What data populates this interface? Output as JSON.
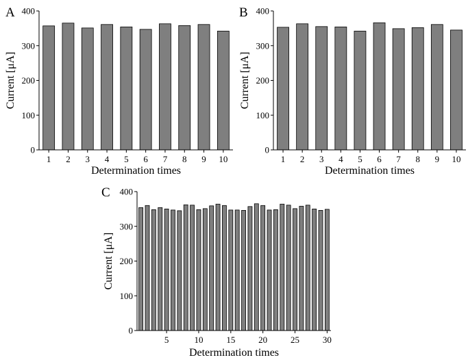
{
  "chart_data": [
    {
      "panel_label": "A",
      "type": "bar",
      "categories": [
        "1",
        "2",
        "3",
        "4",
        "5",
        "6",
        "7",
        "8",
        "9",
        "10"
      ],
      "values": [
        357,
        365,
        351,
        361,
        354,
        347,
        363,
        358,
        361,
        342
      ],
      "xlabel": "Determination times",
      "ylabel": "Current [μA]",
      "ylim": [
        0,
        400
      ],
      "yticks": [
        "0",
        "100",
        "200",
        "300",
        "400"
      ],
      "xticks": [
        "1",
        "2",
        "3",
        "4",
        "5",
        "6",
        "7",
        "8",
        "9",
        "10"
      ],
      "grid": false
    },
    {
      "panel_label": "B",
      "type": "bar",
      "categories": [
        "1",
        "2",
        "3",
        "4",
        "5",
        "6",
        "7",
        "8",
        "9",
        "10"
      ],
      "values": [
        353,
        363,
        355,
        354,
        342,
        366,
        349,
        352,
        361,
        345
      ],
      "xlabel": "Determination times",
      "ylabel": "Current [μA]",
      "ylim": [
        0,
        400
      ],
      "yticks": [
        "0",
        "100",
        "200",
        "300",
        "400"
      ],
      "xticks": [
        "1",
        "2",
        "3",
        "4",
        "5",
        "6",
        "7",
        "8",
        "9",
        "10"
      ],
      "grid": false
    },
    {
      "panel_label": "C",
      "type": "bar",
      "categories": [
        "1",
        "2",
        "3",
        "4",
        "5",
        "6",
        "7",
        "8",
        "9",
        "10",
        "11",
        "12",
        "13",
        "14",
        "15",
        "16",
        "17",
        "18",
        "19",
        "20",
        "21",
        "22",
        "23",
        "24",
        "25",
        "26",
        "27",
        "28",
        "29",
        "30"
      ],
      "values": [
        354,
        360,
        348,
        354,
        350,
        347,
        345,
        362,
        361,
        348,
        351,
        359,
        364,
        360,
        347,
        347,
        346,
        357,
        365,
        360,
        347,
        348,
        364,
        361,
        351,
        358,
        361,
        350,
        346,
        349
      ],
      "xlabel": "Determination times",
      "ylabel": "Current [μA]",
      "ylim": [
        0,
        400
      ],
      "yticks": [
        "0",
        "100",
        "200",
        "300",
        "400"
      ],
      "xticks": [
        "5",
        "10",
        "15",
        "20",
        "25",
        "30"
      ],
      "grid": false
    }
  ]
}
